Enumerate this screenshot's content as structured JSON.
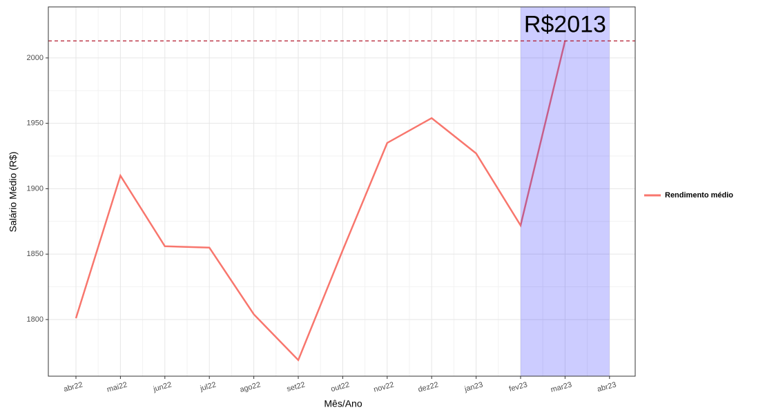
{
  "chart_data": {
    "type": "line",
    "xlabel": "Mês/Ano",
    "ylabel": "Salário Médio (R$)",
    "categories": [
      "abr22",
      "mai22",
      "jun22",
      "jul22",
      "ago22",
      "set22",
      "out22",
      "nov22",
      "dez22",
      "jan23",
      "fev23",
      "mar23",
      "abr23"
    ],
    "series": [
      {
        "name": "Rendimento médio",
        "color": "#F8766D",
        "values": [
          1801,
          1910,
          1856,
          1855,
          1804,
          1769,
          1853,
          1935,
          1954,
          1927,
          1872,
          2013,
          null
        ]
      }
    ],
    "ylim": [
      1756.7,
      2039
    ],
    "yticks": [
      1800,
      1850,
      1900,
      1950,
      2000
    ],
    "grid": true,
    "highlight": {
      "start": "fev23",
      "end": "abr23",
      "color": "#0000ff"
    },
    "hline": {
      "value": 2013,
      "label": "R$2013",
      "color": "#b2182b"
    },
    "legend": "right"
  }
}
